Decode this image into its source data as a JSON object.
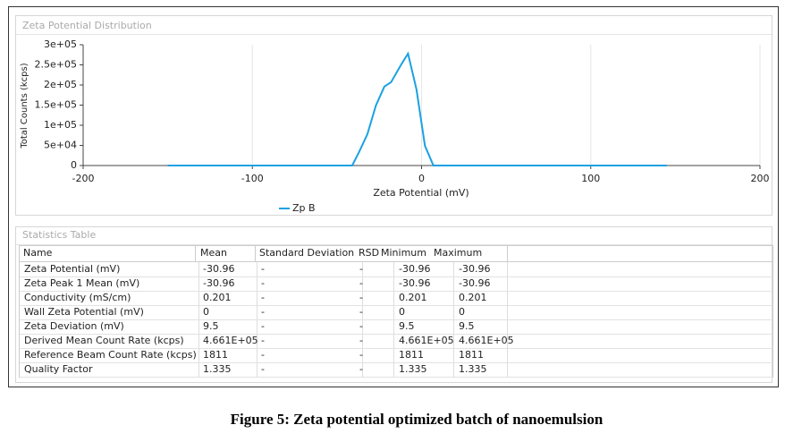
{
  "chart_data": {
    "type": "line",
    "title": "Zeta Potential Distribution",
    "x_label": "Zeta Potential (mV)",
    "y_label": "Total Counts (kcps)",
    "x": [
      -150,
      -41,
      -37,
      -32,
      -27,
      -22,
      -18,
      -12,
      -8,
      -3,
      2,
      7,
      145
    ],
    "series": [
      {
        "name": "Zp B",
        "color": "#1ba1e2",
        "values": [
          0,
          0,
          33000,
          78000,
          149000,
          196000,
          207000,
          251000,
          278000,
          189000,
          49000,
          0,
          0
        ]
      }
    ],
    "xlim": [
      -200,
      200
    ],
    "xticks": [
      -200,
      -100,
      0,
      100,
      200
    ],
    "ylim": [
      0,
      300000
    ],
    "yticks": [
      0,
      {
        "value": 50000,
        "label": "5e+04"
      },
      {
        "value": 100000,
        "label": "1e+05"
      },
      {
        "value": 150000,
        "label": "1.5e+05"
      },
      {
        "value": 200000,
        "label": "2e+05"
      },
      {
        "value": 250000,
        "label": "2.5e+05"
      },
      {
        "value": 300000,
        "label": "3e+05"
      }
    ],
    "grid": true,
    "legend": "bottom"
  },
  "table": {
    "title": "Statistics Table",
    "headers": [
      "Name",
      "Mean",
      "Standard Deviation",
      "RSD",
      "Minimum",
      "Maximum"
    ],
    "rows": [
      [
        "Zeta Potential (mV)",
        "-30.96",
        "-",
        "-",
        "-30.96",
        "-30.96"
      ],
      [
        "Zeta Peak 1 Mean (mV)",
        "-30.96",
        "-",
        "-",
        "-30.96",
        "-30.96"
      ],
      [
        "Conductivity (mS/cm)",
        "0.201",
        "-",
        "-",
        "0.201",
        "0.201"
      ],
      [
        "Wall Zeta Potential (mV)",
        "0",
        "-",
        "-",
        "0",
        "0"
      ],
      [
        "Zeta Deviation (mV)",
        "9.5",
        "-",
        "-",
        "9.5",
        "9.5"
      ],
      [
        "Derived Mean Count Rate (kcps)",
        "4.661E+05",
        "-",
        "-",
        "4.661E+05",
        "4.661E+05"
      ],
      [
        "Reference Beam Count Rate (kcps)",
        "1811",
        "-",
        "-",
        "1811",
        "1811"
      ],
      [
        "Quality Factor",
        "1.335",
        "-",
        "-",
        "1.335",
        "1.335"
      ]
    ]
  },
  "caption": "Figure 5: Zeta potential optimized batch of nanoemulsion"
}
